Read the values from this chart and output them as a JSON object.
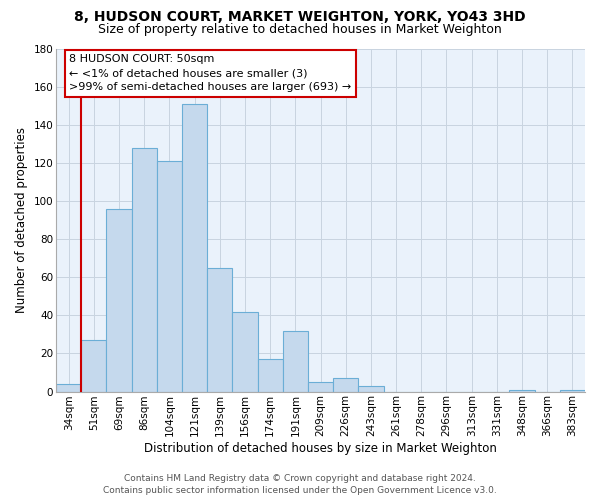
{
  "title": "8, HUDSON COURT, MARKET WEIGHTON, YORK, YO43 3HD",
  "subtitle": "Size of property relative to detached houses in Market Weighton",
  "xlabel": "Distribution of detached houses by size in Market Weighton",
  "ylabel": "Number of detached properties",
  "bar_labels": [
    "34sqm",
    "51sqm",
    "69sqm",
    "86sqm",
    "104sqm",
    "121sqm",
    "139sqm",
    "156sqm",
    "174sqm",
    "191sqm",
    "209sqm",
    "226sqm",
    "243sqm",
    "261sqm",
    "278sqm",
    "296sqm",
    "313sqm",
    "331sqm",
    "348sqm",
    "366sqm",
    "383sqm"
  ],
  "bar_heights": [
    4,
    27,
    96,
    128,
    121,
    151,
    65,
    42,
    17,
    32,
    5,
    7,
    3,
    0,
    0,
    0,
    0,
    0,
    1,
    0,
    1
  ],
  "bar_color": "#c5d9ed",
  "bar_edge_color": "#6baed6",
  "highlight_color": "#cc0000",
  "ylim": [
    0,
    180
  ],
  "yticks": [
    0,
    20,
    40,
    60,
    80,
    100,
    120,
    140,
    160,
    180
  ],
  "annotation_box_text_line1": "8 HUDSON COURT: 50sqm",
  "annotation_box_text_line2": "← <1% of detached houses are smaller (3)",
  "annotation_box_text_line3": ">99% of semi-detached houses are larger (693) →",
  "annotation_box_color": "#ffffff",
  "annotation_box_edge_color": "#cc0000",
  "footer_line1": "Contains HM Land Registry data © Crown copyright and database right 2024.",
  "footer_line2": "Contains public sector information licensed under the Open Government Licence v3.0.",
  "background_color": "#ffffff",
  "grid_color": "#c8d4e0",
  "title_fontsize": 10,
  "subtitle_fontsize": 9,
  "axis_label_fontsize": 8.5,
  "tick_fontsize": 7.5,
  "annotation_fontsize": 8,
  "footer_fontsize": 6.5
}
